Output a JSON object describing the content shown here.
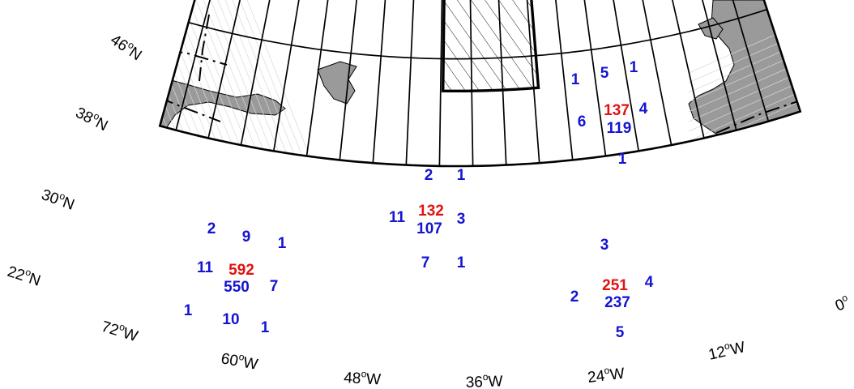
{
  "map": {
    "colors": {
      "grid": "#000000",
      "land": "#9a9a9a",
      "count_primary": "#1414d2",
      "count_highlight": "#e21212",
      "hatch": "#000000"
    },
    "lat_labels": [
      {
        "text": "46",
        "unit": "o",
        "hem": "N"
      },
      {
        "text": "38",
        "unit": "o",
        "hem": "N"
      },
      {
        "text": "30",
        "unit": "o",
        "hem": "N"
      },
      {
        "text": "22",
        "unit": "o",
        "hem": "N"
      }
    ],
    "lon_labels": [
      {
        "text": "72",
        "unit": "o",
        "hem": "W"
      },
      {
        "text": "60",
        "unit": "o",
        "hem": "W"
      },
      {
        "text": "48",
        "unit": "o",
        "hem": "W"
      },
      {
        "text": "36",
        "unit": "o",
        "hem": "W"
      },
      {
        "text": "24",
        "unit": "o",
        "hem": "W"
      },
      {
        "text": "12",
        "unit": "o",
        "hem": "W"
      },
      {
        "text": "0",
        "unit": "o",
        "hem": ""
      }
    ],
    "cell_counts": [
      {
        "value": "1",
        "color": "primary"
      },
      {
        "value": "5",
        "color": "primary"
      },
      {
        "value": "1",
        "color": "primary"
      },
      {
        "value": "6",
        "color": "primary"
      },
      {
        "value": "137",
        "color": "highlight"
      },
      {
        "value": "119",
        "color": "primary"
      },
      {
        "value": "4",
        "color": "primary"
      },
      {
        "value": "1",
        "color": "primary"
      },
      {
        "value": "2",
        "color": "primary"
      },
      {
        "value": "1",
        "color": "primary"
      },
      {
        "value": "11",
        "color": "primary"
      },
      {
        "value": "132",
        "color": "highlight"
      },
      {
        "value": "107",
        "color": "primary"
      },
      {
        "value": "3",
        "color": "primary"
      },
      {
        "value": "7",
        "color": "primary"
      },
      {
        "value": "1",
        "color": "primary"
      },
      {
        "value": "2",
        "color": "primary"
      },
      {
        "value": "9",
        "color": "primary"
      },
      {
        "value": "1",
        "color": "primary"
      },
      {
        "value": "11",
        "color": "primary"
      },
      {
        "value": "592",
        "color": "highlight"
      },
      {
        "value": "550",
        "color": "primary"
      },
      {
        "value": "7",
        "color": "primary"
      },
      {
        "value": "1",
        "color": "primary"
      },
      {
        "value": "10",
        "color": "primary"
      },
      {
        "value": "1",
        "color": "primary"
      },
      {
        "value": "3",
        "color": "primary"
      },
      {
        "value": "2",
        "color": "primary"
      },
      {
        "value": "251",
        "color": "highlight"
      },
      {
        "value": "237",
        "color": "primary"
      },
      {
        "value": "4",
        "color": "primary"
      },
      {
        "value": "5",
        "color": "primary"
      }
    ]
  }
}
